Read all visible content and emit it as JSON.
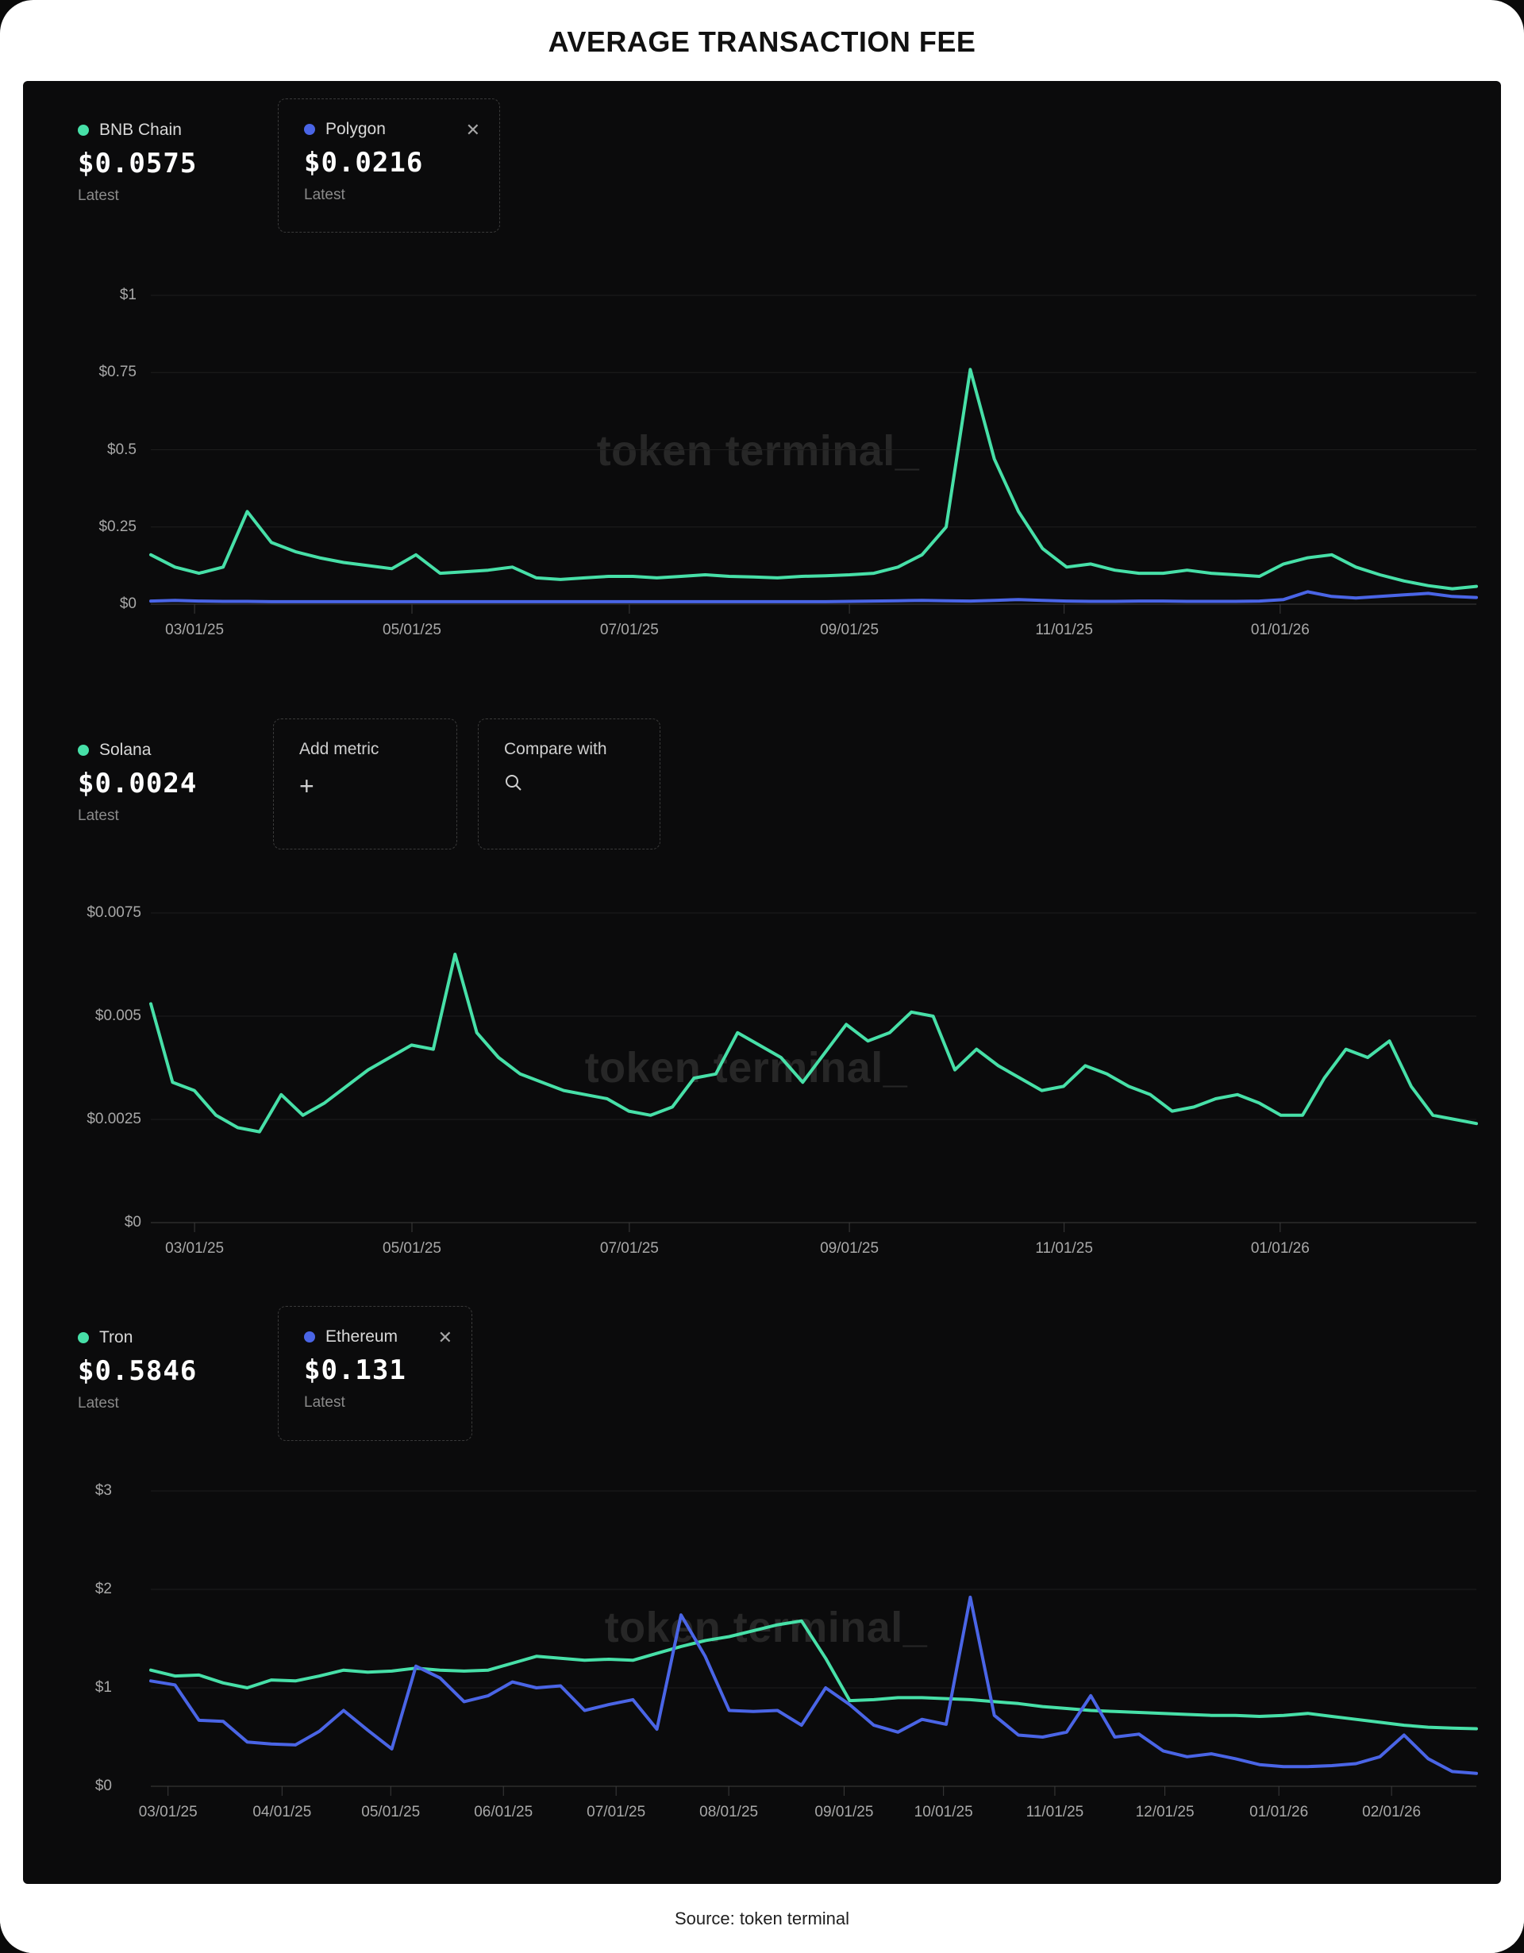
{
  "title": "AVERAGE TRANSACTION FEE",
  "source": "Source: token terminal",
  "watermark": "token terminal_",
  "colors": {
    "green": "#47e0a8",
    "blue": "#4a65e6"
  },
  "charts": [
    {
      "primary": {
        "name": "BNB Chain",
        "value": "$0.0575",
        "sub": "Latest"
      },
      "compare": {
        "name": "Polygon",
        "value": "$0.0216",
        "sub": "Latest",
        "close": "✕"
      },
      "chart_data": {
        "type": "line",
        "ylim": [
          0,
          1
        ],
        "grid": true,
        "yticks": [
          {
            "v": 0,
            "label": "$0"
          },
          {
            "v": 0.25,
            "label": "$0.25"
          },
          {
            "v": 0.5,
            "label": "$0.5"
          },
          {
            "v": 0.75,
            "label": "$0.75"
          },
          {
            "v": 1,
            "label": "$1"
          }
        ],
        "xticks": [
          {
            "f": 0.033,
            "label": "03/01/25"
          },
          {
            "f": 0.197,
            "label": "05/01/25"
          },
          {
            "f": 0.361,
            "label": "07/01/25"
          },
          {
            "f": 0.527,
            "label": "09/01/25"
          },
          {
            "f": 0.689,
            "label": "11/01/25"
          },
          {
            "f": 0.852,
            "label": "01/01/26"
          }
        ],
        "series": [
          {
            "name": "Polygon",
            "color": "blue",
            "values": [
              0.01,
              0.012,
              0.01,
              0.009,
              0.009,
              0.008,
              0.008,
              0.008,
              0.008,
              0.008,
              0.008,
              0.008,
              0.008,
              0.008,
              0.008,
              0.008,
              0.008,
              0.008,
              0.008,
              0.008,
              0.008,
              0.008,
              0.008,
              0.008,
              0.008,
              0.008,
              0.008,
              0.008,
              0.008,
              0.009,
              0.01,
              0.011,
              0.012,
              0.011,
              0.01,
              0.012,
              0.015,
              0.012,
              0.01,
              0.009,
              0.009,
              0.01,
              0.01,
              0.009,
              0.009,
              0.009,
              0.01,
              0.015,
              0.04,
              0.025,
              0.02,
              0.025,
              0.03,
              0.035,
              0.025,
              0.0216
            ]
          },
          {
            "name": "BNB Chain",
            "color": "green",
            "values": [
              0.16,
              0.12,
              0.1,
              0.12,
              0.3,
              0.2,
              0.17,
              0.15,
              0.135,
              0.125,
              0.115,
              0.16,
              0.1,
              0.105,
              0.11,
              0.12,
              0.085,
              0.08,
              0.085,
              0.09,
              0.09,
              0.085,
              0.09,
              0.095,
              0.09,
              0.088,
              0.085,
              0.09,
              0.092,
              0.095,
              0.1,
              0.12,
              0.16,
              0.25,
              0.76,
              0.47,
              0.3,
              0.18,
              0.12,
              0.13,
              0.11,
              0.1,
              0.1,
              0.11,
              0.1,
              0.095,
              0.09,
              0.13,
              0.15,
              0.16,
              0.12,
              0.095,
              0.075,
              0.06,
              0.05,
              0.0575
            ]
          }
        ]
      }
    },
    {
      "primary": {
        "name": "Solana",
        "value": "$0.0024",
        "sub": "Latest"
      },
      "actions": {
        "add_metric": {
          "label": "Add metric",
          "icon": "+"
        },
        "compare_with": {
          "label": "Compare with"
        }
      },
      "chart_data": {
        "type": "line",
        "ylim": [
          0,
          0.0075
        ],
        "grid": true,
        "yticks": [
          {
            "v": 0,
            "label": "$0"
          },
          {
            "v": 0.0025,
            "label": "$0.0025"
          },
          {
            "v": 0.005,
            "label": "$0.005"
          },
          {
            "v": 0.0075,
            "label": "$0.0075"
          }
        ],
        "xticks": [
          {
            "f": 0.033,
            "label": "03/01/25"
          },
          {
            "f": 0.197,
            "label": "05/01/25"
          },
          {
            "f": 0.361,
            "label": "07/01/25"
          },
          {
            "f": 0.527,
            "label": "09/01/25"
          },
          {
            "f": 0.689,
            "label": "11/01/25"
          },
          {
            "f": 0.852,
            "label": "01/01/26"
          }
        ],
        "series": [
          {
            "name": "Solana",
            "color": "green",
            "values": [
              0.0053,
              0.0034,
              0.0032,
              0.0026,
              0.0023,
              0.0022,
              0.0031,
              0.0026,
              0.0029,
              0.0033,
              0.0037,
              0.004,
              0.0043,
              0.0042,
              0.0065,
              0.0046,
              0.004,
              0.0036,
              0.0034,
              0.0032,
              0.0031,
              0.003,
              0.0027,
              0.0026,
              0.0028,
              0.0035,
              0.0036,
              0.0046,
              0.0043,
              0.004,
              0.0034,
              0.0041,
              0.0048,
              0.0044,
              0.0046,
              0.0051,
              0.005,
              0.0037,
              0.0042,
              0.0038,
              0.0035,
              0.0032,
              0.0033,
              0.0038,
              0.0036,
              0.0033,
              0.0031,
              0.0027,
              0.0028,
              0.003,
              0.0031,
              0.0029,
              0.0026,
              0.0026,
              0.0035,
              0.0042,
              0.004,
              0.0044,
              0.0033,
              0.0026,
              0.0025,
              0.0024
            ]
          }
        ]
      }
    },
    {
      "primary": {
        "name": "Tron",
        "value": "$0.5846",
        "sub": "Latest"
      },
      "compare": {
        "name": "Ethereum",
        "value": "$0.131",
        "sub": "Latest",
        "close": "✕"
      },
      "chart_data": {
        "type": "line",
        "ylim": [
          0,
          3
        ],
        "grid": true,
        "yticks": [
          {
            "v": 0,
            "label": "$0"
          },
          {
            "v": 1,
            "label": "$1"
          },
          {
            "v": 2,
            "label": "$2"
          },
          {
            "v": 3,
            "label": "$3"
          }
        ],
        "xticks": [
          {
            "f": 0.013,
            "label": "03/01/25"
          },
          {
            "f": 0.099,
            "label": "04/01/25"
          },
          {
            "f": 0.181,
            "label": "05/01/25"
          },
          {
            "f": 0.266,
            "label": "06/01/25"
          },
          {
            "f": 0.351,
            "label": "07/01/25"
          },
          {
            "f": 0.436,
            "label": "08/01/25"
          },
          {
            "f": 0.523,
            "label": "09/01/25"
          },
          {
            "f": 0.598,
            "label": "10/01/25"
          },
          {
            "f": 0.682,
            "label": "11/01/25"
          },
          {
            "f": 0.765,
            "label": "12/01/25"
          },
          {
            "f": 0.851,
            "label": "01/01/26"
          },
          {
            "f": 0.936,
            "label": "02/01/26"
          }
        ],
        "series": [
          {
            "name": "Tron",
            "color": "green",
            "values": [
              1.18,
              1.12,
              1.13,
              1.05,
              1.0,
              1.08,
              1.07,
              1.12,
              1.18,
              1.16,
              1.17,
              1.2,
              1.18,
              1.17,
              1.18,
              1.25,
              1.32,
              1.3,
              1.28,
              1.29,
              1.28,
              1.35,
              1.42,
              1.48,
              1.52,
              1.58,
              1.64,
              1.68,
              1.3,
              0.87,
              0.88,
              0.9,
              0.9,
              0.89,
              0.88,
              0.86,
              0.84,
              0.81,
              0.79,
              0.77,
              0.76,
              0.75,
              0.74,
              0.73,
              0.72,
              0.72,
              0.71,
              0.72,
              0.74,
              0.71,
              0.68,
              0.65,
              0.62,
              0.6,
              0.59,
              0.5846
            ]
          },
          {
            "name": "Ethereum",
            "color": "blue",
            "values": [
              1.07,
              1.03,
              0.67,
              0.66,
              0.45,
              0.43,
              0.42,
              0.56,
              0.77,
              0.57,
              0.38,
              1.22,
              1.1,
              0.86,
              0.92,
              1.06,
              1.0,
              1.02,
              0.77,
              0.83,
              0.88,
              0.58,
              1.74,
              1.32,
              0.77,
              0.76,
              0.77,
              0.62,
              1.0,
              0.83,
              0.62,
              0.55,
              0.68,
              0.63,
              1.92,
              0.72,
              0.52,
              0.5,
              0.55,
              0.92,
              0.5,
              0.53,
              0.36,
              0.3,
              0.33,
              0.28,
              0.22,
              0.2,
              0.2,
              0.21,
              0.23,
              0.3,
              0.52,
              0.28,
              0.15,
              0.131
            ]
          }
        ]
      }
    }
  ]
}
